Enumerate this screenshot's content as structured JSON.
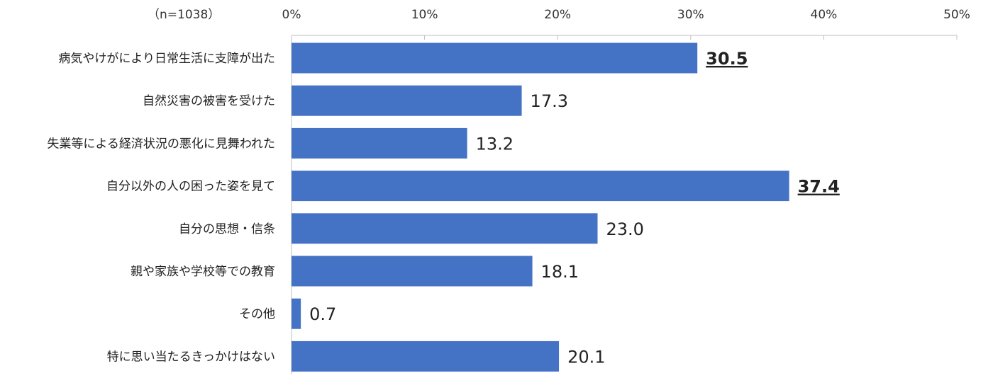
{
  "note": "（n=1038）",
  "chart_data": {
    "type": "bar",
    "orientation": "horizontal",
    "categories": [
      "病気やけがにより日常生活に支障が出た",
      "自然災害の被害を受けた",
      "失業等による経済状況の悪化に見舞われた",
      "自分以外の人の困った姿を見て",
      "自分の思想・信条",
      "親や家族や学校等での教育",
      "その他",
      "特に思い当たるきっかけはない"
    ],
    "values": [
      30.5,
      17.3,
      13.2,
      37.4,
      23.0,
      18.1,
      0.7,
      20.1
    ],
    "value_labels": [
      "30.5",
      "17.3",
      "13.2",
      "37.4",
      "23.0",
      "18.1",
      "0.7",
      "20.1"
    ],
    "emphasized": [
      true,
      false,
      false,
      true,
      false,
      false,
      false,
      false
    ],
    "xlim": [
      0,
      50
    ],
    "ticks": [
      0,
      10,
      20,
      30,
      40,
      50
    ],
    "tick_labels": [
      "0%",
      "10%",
      "20%",
      "30%",
      "40%",
      "50%"
    ],
    "axis_position": "top",
    "grid": false,
    "bar_color": "#4472C4",
    "title": "",
    "xlabel": "",
    "ylabel": ""
  }
}
